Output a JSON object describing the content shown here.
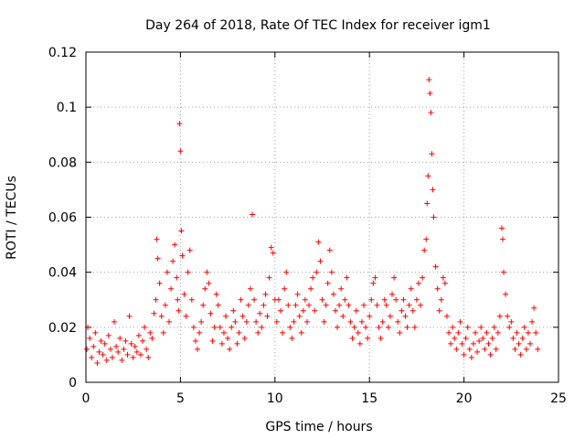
{
  "chart_data": {
    "type": "scatter",
    "title": "Day 264 of 2018, Rate Of TEC Index for receiver igm1",
    "xlabel": "GPS time / hours",
    "ylabel": "ROTI / TECUs",
    "xlim": [
      0,
      25
    ],
    "ylim": [
      0,
      0.12
    ],
    "xticks": [
      0,
      5,
      10,
      15,
      20,
      25
    ],
    "yticks": [
      0,
      0.02,
      0.04,
      0.06,
      0.08,
      0.1,
      0.12
    ],
    "xtick_labels": [
      "0",
      "5",
      "10",
      "15",
      "20",
      "25"
    ],
    "ytick_labels": [
      "0",
      "0.02",
      "0.04",
      "0.06",
      "0.08",
      "0.1",
      "0.12"
    ],
    "grid": true,
    "marker": "+",
    "color": "#ff0000",
    "series": [
      {
        "name": "ROTI",
        "points": [
          [
            0.05,
            0.012
          ],
          [
            0.1,
            0.02
          ],
          [
            0.2,
            0.016
          ],
          [
            0.3,
            0.009
          ],
          [
            0.4,
            0.013
          ],
          [
            0.5,
            0.018
          ],
          [
            0.6,
            0.007
          ],
          [
            0.7,
            0.011
          ],
          [
            0.8,
            0.015
          ],
          [
            0.9,
            0.01
          ],
          [
            1.0,
            0.014
          ],
          [
            1.1,
            0.008
          ],
          [
            1.2,
            0.017
          ],
          [
            1.3,
            0.012
          ],
          [
            1.4,
            0.009
          ],
          [
            1.5,
            0.022
          ],
          [
            1.6,
            0.013
          ],
          [
            1.7,
            0.011
          ],
          [
            1.8,
            0.016
          ],
          [
            1.9,
            0.008
          ],
          [
            2.0,
            0.012
          ],
          [
            2.1,
            0.015
          ],
          [
            2.2,
            0.01
          ],
          [
            2.3,
            0.024
          ],
          [
            2.4,
            0.014
          ],
          [
            2.5,
            0.009
          ],
          [
            2.6,
            0.013
          ],
          [
            2.7,
            0.011
          ],
          [
            2.8,
            0.017
          ],
          [
            2.9,
            0.01
          ],
          [
            3.0,
            0.015
          ],
          [
            3.1,
            0.02
          ],
          [
            3.2,
            0.012
          ],
          [
            3.3,
            0.009
          ],
          [
            3.4,
            0.018
          ],
          [
            3.5,
            0.016
          ],
          [
            3.6,
            0.025
          ],
          [
            3.7,
            0.03
          ],
          [
            3.75,
            0.052
          ],
          [
            3.8,
            0.045
          ],
          [
            3.9,
            0.036
          ],
          [
            4.0,
            0.024
          ],
          [
            4.1,
            0.018
          ],
          [
            4.2,
            0.028
          ],
          [
            4.3,
            0.04
          ],
          [
            4.4,
            0.022
          ],
          [
            4.5,
            0.034
          ],
          [
            4.6,
            0.044
          ],
          [
            4.7,
            0.05
          ],
          [
            4.8,
            0.038
          ],
          [
            4.85,
            0.03
          ],
          [
            4.9,
            0.026
          ],
          [
            4.95,
            0.094
          ],
          [
            5.0,
            0.084
          ],
          [
            5.05,
            0.055
          ],
          [
            5.1,
            0.046
          ],
          [
            5.2,
            0.032
          ],
          [
            5.3,
            0.024
          ],
          [
            5.4,
            0.04
          ],
          [
            5.5,
            0.048
          ],
          [
            5.6,
            0.03
          ],
          [
            5.7,
            0.02
          ],
          [
            5.8,
            0.015
          ],
          [
            5.9,
            0.012
          ],
          [
            6.0,
            0.018
          ],
          [
            6.1,
            0.022
          ],
          [
            6.2,
            0.028
          ],
          [
            6.3,
            0.034
          ],
          [
            6.4,
            0.04
          ],
          [
            6.5,
            0.036
          ],
          [
            6.6,
            0.025
          ],
          [
            6.7,
            0.015
          ],
          [
            6.8,
            0.02
          ],
          [
            6.9,
            0.032
          ],
          [
            7.0,
            0.028
          ],
          [
            7.1,
            0.02
          ],
          [
            7.2,
            0.014
          ],
          [
            7.3,
            0.018
          ],
          [
            7.4,
            0.024
          ],
          [
            7.5,
            0.016
          ],
          [
            7.6,
            0.012
          ],
          [
            7.7,
            0.02
          ],
          [
            7.8,
            0.026
          ],
          [
            7.9,
            0.022
          ],
          [
            8.0,
            0.014
          ],
          [
            8.1,
            0.018
          ],
          [
            8.2,
            0.03
          ],
          [
            8.3,
            0.024
          ],
          [
            8.4,
            0.016
          ],
          [
            8.5,
            0.022
          ],
          [
            8.6,
            0.028
          ],
          [
            8.7,
            0.034
          ],
          [
            8.8,
            0.061
          ],
          [
            8.9,
            0.03
          ],
          [
            9.0,
            0.022
          ],
          [
            9.1,
            0.018
          ],
          [
            9.2,
            0.025
          ],
          [
            9.3,
            0.02
          ],
          [
            9.4,
            0.028
          ],
          [
            9.5,
            0.032
          ],
          [
            9.6,
            0.024
          ],
          [
            9.7,
            0.038
          ],
          [
            9.8,
            0.049
          ],
          [
            9.9,
            0.047
          ],
          [
            10.0,
            0.03
          ],
          [
            10.1,
            0.022
          ],
          [
            10.2,
            0.03
          ],
          [
            10.3,
            0.026
          ],
          [
            10.4,
            0.018
          ],
          [
            10.5,
            0.034
          ],
          [
            10.6,
            0.04
          ],
          [
            10.7,
            0.028
          ],
          [
            10.8,
            0.02
          ],
          [
            10.9,
            0.016
          ],
          [
            11.0,
            0.022
          ],
          [
            11.1,
            0.028
          ],
          [
            11.2,
            0.032
          ],
          [
            11.3,
            0.024
          ],
          [
            11.4,
            0.018
          ],
          [
            11.5,
            0.026
          ],
          [
            11.6,
            0.03
          ],
          [
            11.7,
            0.022
          ],
          [
            11.8,
            0.028
          ],
          [
            11.9,
            0.034
          ],
          [
            12.0,
            0.038
          ],
          [
            12.1,
            0.026
          ],
          [
            12.2,
            0.04
          ],
          [
            12.3,
            0.051
          ],
          [
            12.4,
            0.044
          ],
          [
            12.5,
            0.03
          ],
          [
            12.6,
            0.022
          ],
          [
            12.7,
            0.028
          ],
          [
            12.8,
            0.036
          ],
          [
            12.9,
            0.048
          ],
          [
            13.0,
            0.04
          ],
          [
            13.1,
            0.032
          ],
          [
            13.2,
            0.026
          ],
          [
            13.3,
            0.02
          ],
          [
            13.4,
            0.028
          ],
          [
            13.5,
            0.034
          ],
          [
            13.6,
            0.024
          ],
          [
            13.7,
            0.03
          ],
          [
            13.8,
            0.038
          ],
          [
            13.9,
            0.028
          ],
          [
            14.0,
            0.022
          ],
          [
            14.1,
            0.016
          ],
          [
            14.2,
            0.02
          ],
          [
            14.3,
            0.026
          ],
          [
            14.4,
            0.018
          ],
          [
            14.5,
            0.014
          ],
          [
            14.6,
            0.022
          ],
          [
            14.7,
            0.028
          ],
          [
            14.8,
            0.02
          ],
          [
            14.9,
            0.016
          ],
          [
            15.0,
            0.024
          ],
          [
            15.1,
            0.03
          ],
          [
            15.2,
            0.036
          ],
          [
            15.3,
            0.038
          ],
          [
            15.4,
            0.028
          ],
          [
            15.5,
            0.02
          ],
          [
            15.6,
            0.016
          ],
          [
            15.7,
            0.022
          ],
          [
            15.8,
            0.03
          ],
          [
            15.9,
            0.028
          ],
          [
            16.0,
            0.02
          ],
          [
            16.1,
            0.024
          ],
          [
            16.2,
            0.032
          ],
          [
            16.3,
            0.038
          ],
          [
            16.4,
            0.03
          ],
          [
            16.5,
            0.022
          ],
          [
            16.6,
            0.018
          ],
          [
            16.7,
            0.026
          ],
          [
            16.8,
            0.03
          ],
          [
            16.9,
            0.024
          ],
          [
            17.0,
            0.02
          ],
          [
            17.1,
            0.028
          ],
          [
            17.2,
            0.034
          ],
          [
            17.3,
            0.026
          ],
          [
            17.4,
            0.02
          ],
          [
            17.5,
            0.03
          ],
          [
            17.6,
            0.036
          ],
          [
            17.7,
            0.028
          ],
          [
            17.8,
            0.038
          ],
          [
            17.9,
            0.048
          ],
          [
            18.0,
            0.052
          ],
          [
            18.05,
            0.065
          ],
          [
            18.1,
            0.075
          ],
          [
            18.15,
            0.11
          ],
          [
            18.2,
            0.105
          ],
          [
            18.25,
            0.098
          ],
          [
            18.3,
            0.083
          ],
          [
            18.35,
            0.07
          ],
          [
            18.4,
            0.06
          ],
          [
            18.5,
            0.042
          ],
          [
            18.6,
            0.034
          ],
          [
            18.7,
            0.026
          ],
          [
            18.8,
            0.03
          ],
          [
            18.9,
            0.038
          ],
          [
            19.0,
            0.036
          ],
          [
            19.1,
            0.024
          ],
          [
            19.2,
            0.018
          ],
          [
            19.3,
            0.014
          ],
          [
            19.4,
            0.02
          ],
          [
            19.5,
            0.016
          ],
          [
            19.6,
            0.012
          ],
          [
            19.7,
            0.018
          ],
          [
            19.8,
            0.022
          ],
          [
            19.9,
            0.014
          ],
          [
            20.0,
            0.01
          ],
          [
            20.1,
            0.016
          ],
          [
            20.2,
            0.02
          ],
          [
            20.3,
            0.012
          ],
          [
            20.4,
            0.009
          ],
          [
            20.5,
            0.014
          ],
          [
            20.6,
            0.018
          ],
          [
            20.7,
            0.011
          ],
          [
            20.8,
            0.015
          ],
          [
            20.9,
            0.02
          ],
          [
            21.0,
            0.016
          ],
          [
            21.1,
            0.012
          ],
          [
            21.2,
            0.018
          ],
          [
            21.3,
            0.014
          ],
          [
            21.4,
            0.01
          ],
          [
            21.5,
            0.016
          ],
          [
            21.6,
            0.02
          ],
          [
            21.7,
            0.012
          ],
          [
            21.8,
            0.018
          ],
          [
            21.9,
            0.024
          ],
          [
            22.0,
            0.056
          ],
          [
            22.05,
            0.052
          ],
          [
            22.1,
            0.04
          ],
          [
            22.2,
            0.032
          ],
          [
            22.3,
            0.024
          ],
          [
            22.4,
            0.02
          ],
          [
            22.5,
            0.022
          ],
          [
            22.6,
            0.016
          ],
          [
            22.7,
            0.012
          ],
          [
            22.8,
            0.018
          ],
          [
            22.9,
            0.014
          ],
          [
            23.0,
            0.01
          ],
          [
            23.1,
            0.016
          ],
          [
            23.2,
            0.02
          ],
          [
            23.3,
            0.012
          ],
          [
            23.4,
            0.018
          ],
          [
            23.5,
            0.014
          ],
          [
            23.6,
            0.022
          ],
          [
            23.7,
            0.027
          ],
          [
            23.8,
            0.018
          ],
          [
            23.9,
            0.012
          ]
        ]
      }
    ]
  }
}
